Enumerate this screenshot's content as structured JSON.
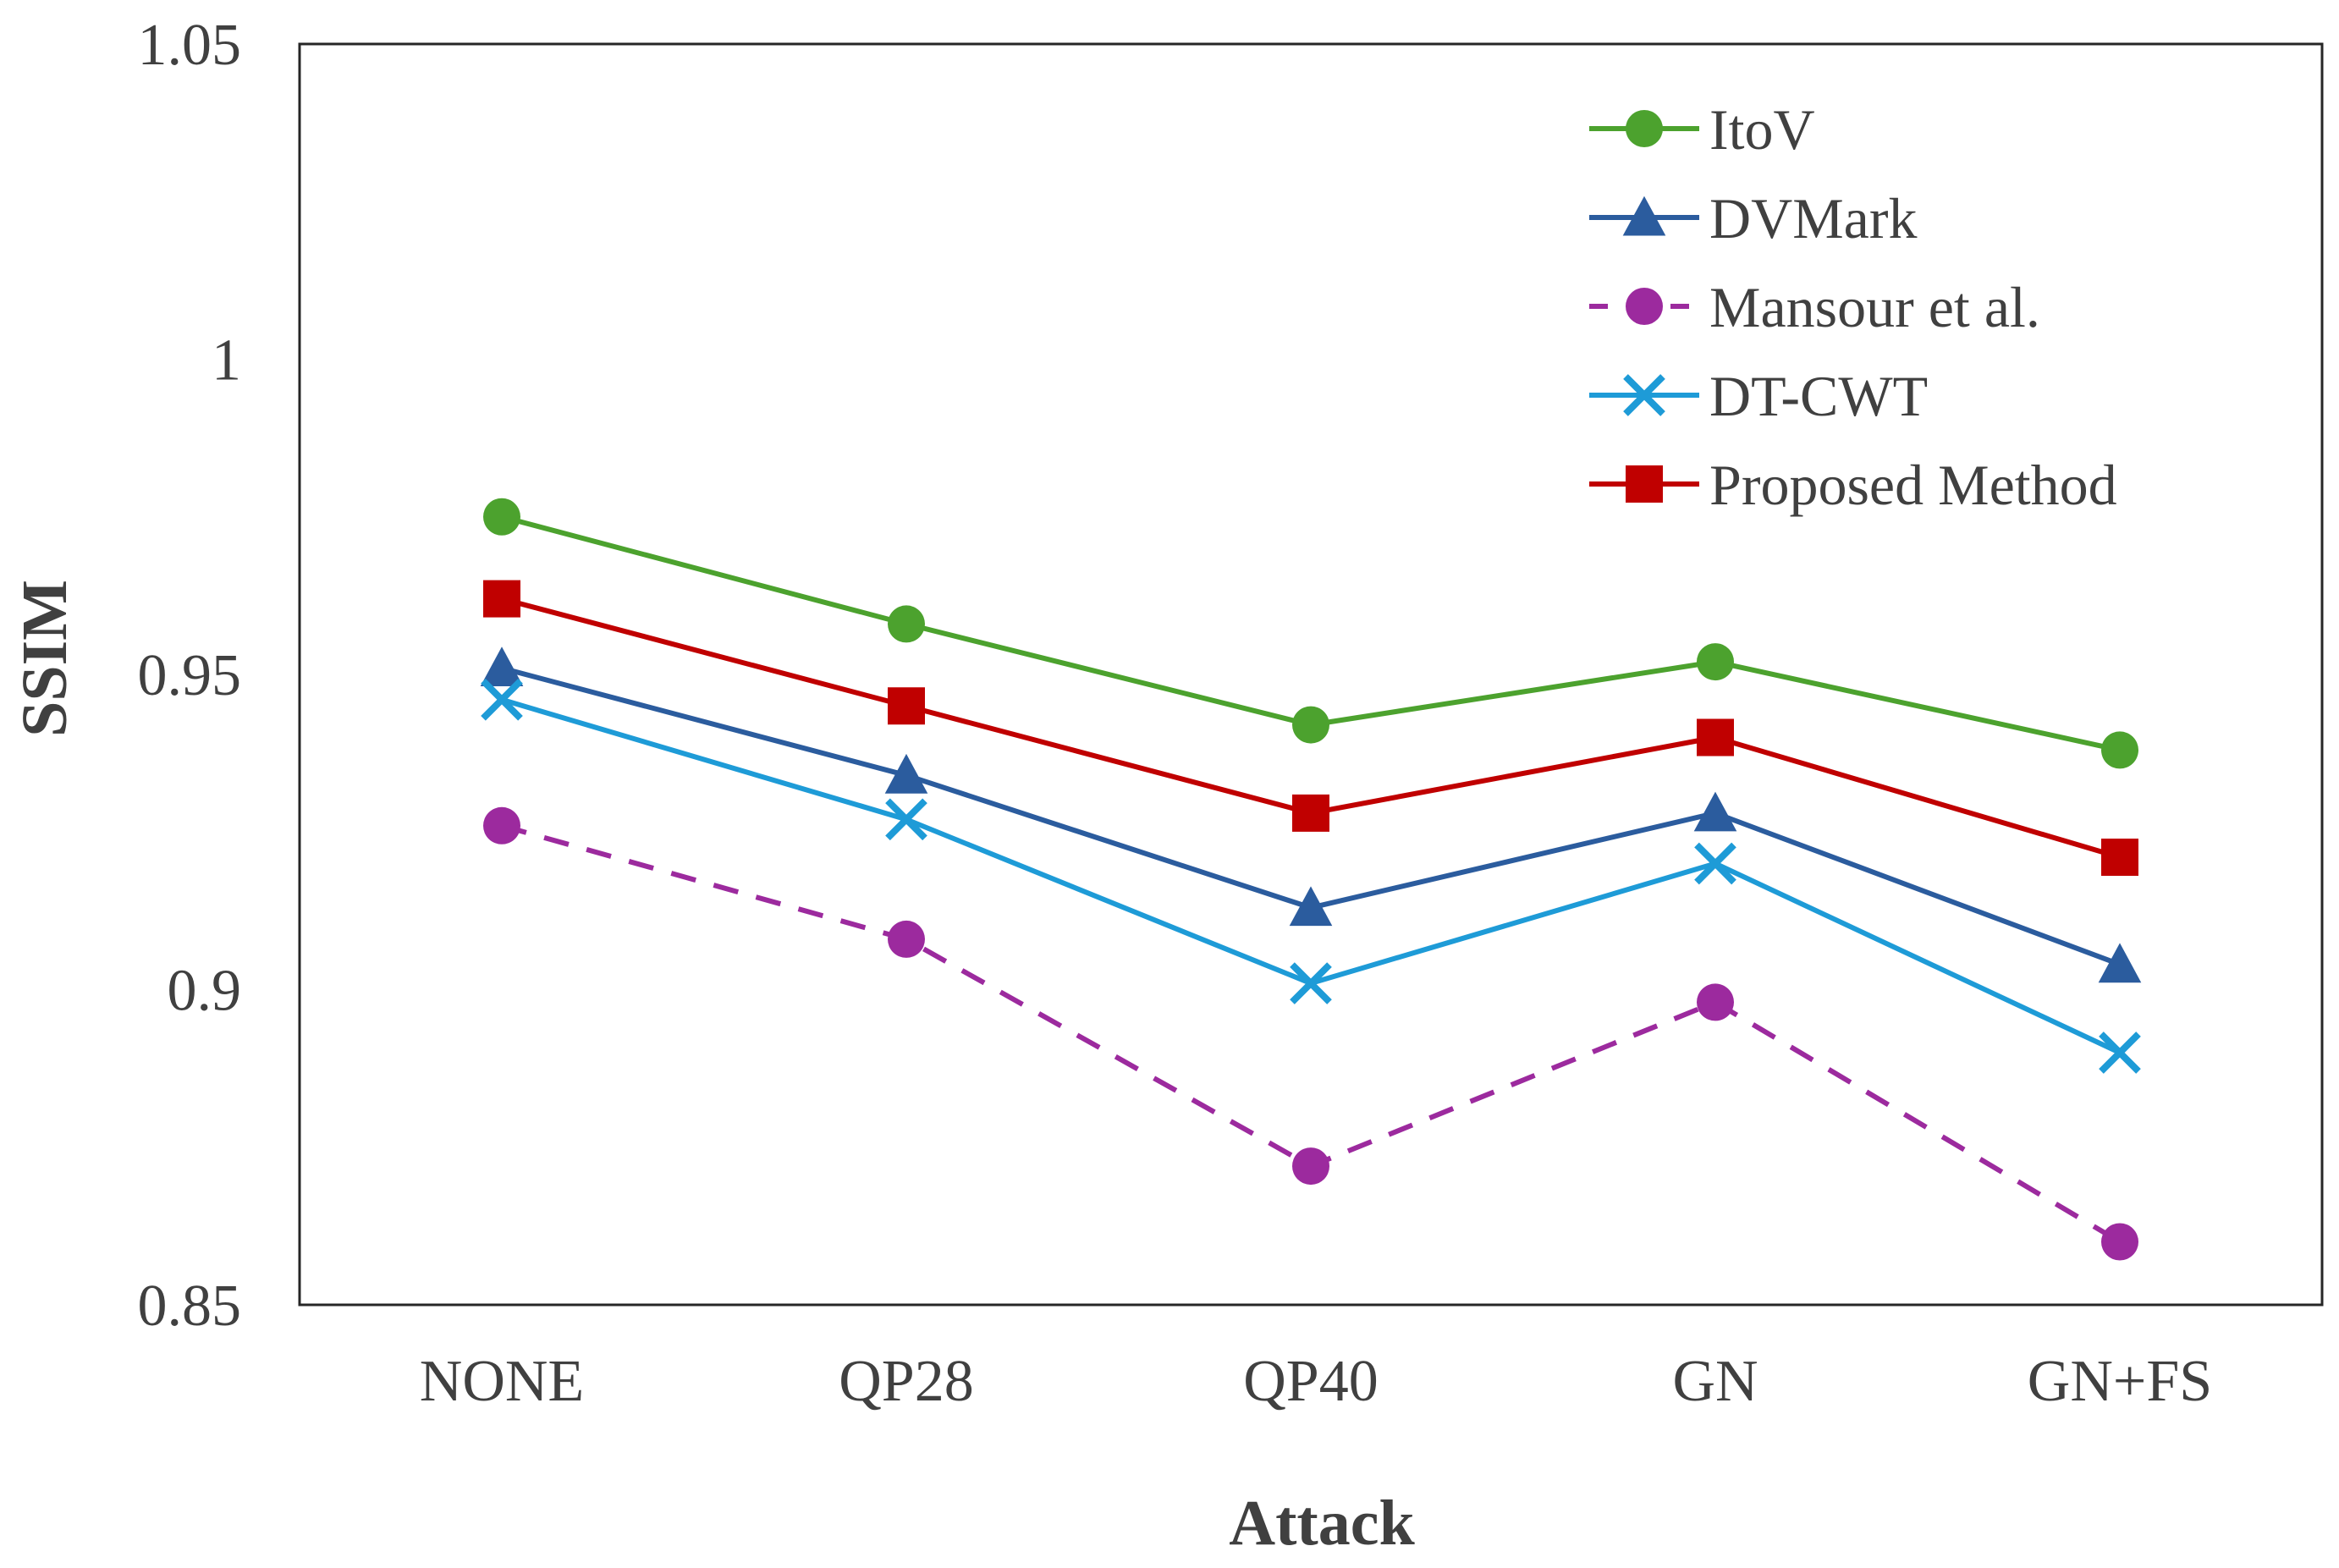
{
  "chart_data": {
    "type": "line",
    "title": "",
    "xlabel": "Attack",
    "ylabel": "SSIM",
    "categories": [
      "NONE",
      "QP28",
      "QP40",
      "GN",
      "GN+FS"
    ],
    "ylim": [
      0.85,
      1.05
    ],
    "yticks": [
      0.85,
      0.9,
      0.95,
      1,
      1.05
    ],
    "ytick_labels": [
      "0.85",
      "0.9",
      "0.95",
      "1",
      "1.05"
    ],
    "grid": false,
    "legend_position": "top-right",
    "series": [
      {
        "name": "ItoV",
        "values": [
          0.975,
          0.958,
          0.942,
          0.952,
          0.938
        ],
        "color": "#4CA22E",
        "marker": "circle",
        "dash": "solid"
      },
      {
        "name": "DVMark",
        "values": [
          0.951,
          0.934,
          0.913,
          0.928,
          0.904
        ],
        "color": "#2B5C9E",
        "marker": "triangle",
        "dash": "solid"
      },
      {
        "name": "Mansour et al.",
        "values": [
          0.926,
          0.908,
          0.872,
          0.898,
          0.86
        ],
        "color": "#9C2A9E",
        "marker": "circle",
        "dash": "dashed"
      },
      {
        "name": "DT-CWT",
        "values": [
          0.946,
          0.927,
          0.901,
          0.92,
          0.89
        ],
        "color": "#1E9BD7",
        "marker": "x",
        "dash": "solid"
      },
      {
        "name": "Proposed Method",
        "values": [
          0.962,
          0.945,
          0.928,
          0.94,
          0.921
        ],
        "color": "#C00000",
        "marker": "square",
        "dash": "solid"
      }
    ]
  }
}
